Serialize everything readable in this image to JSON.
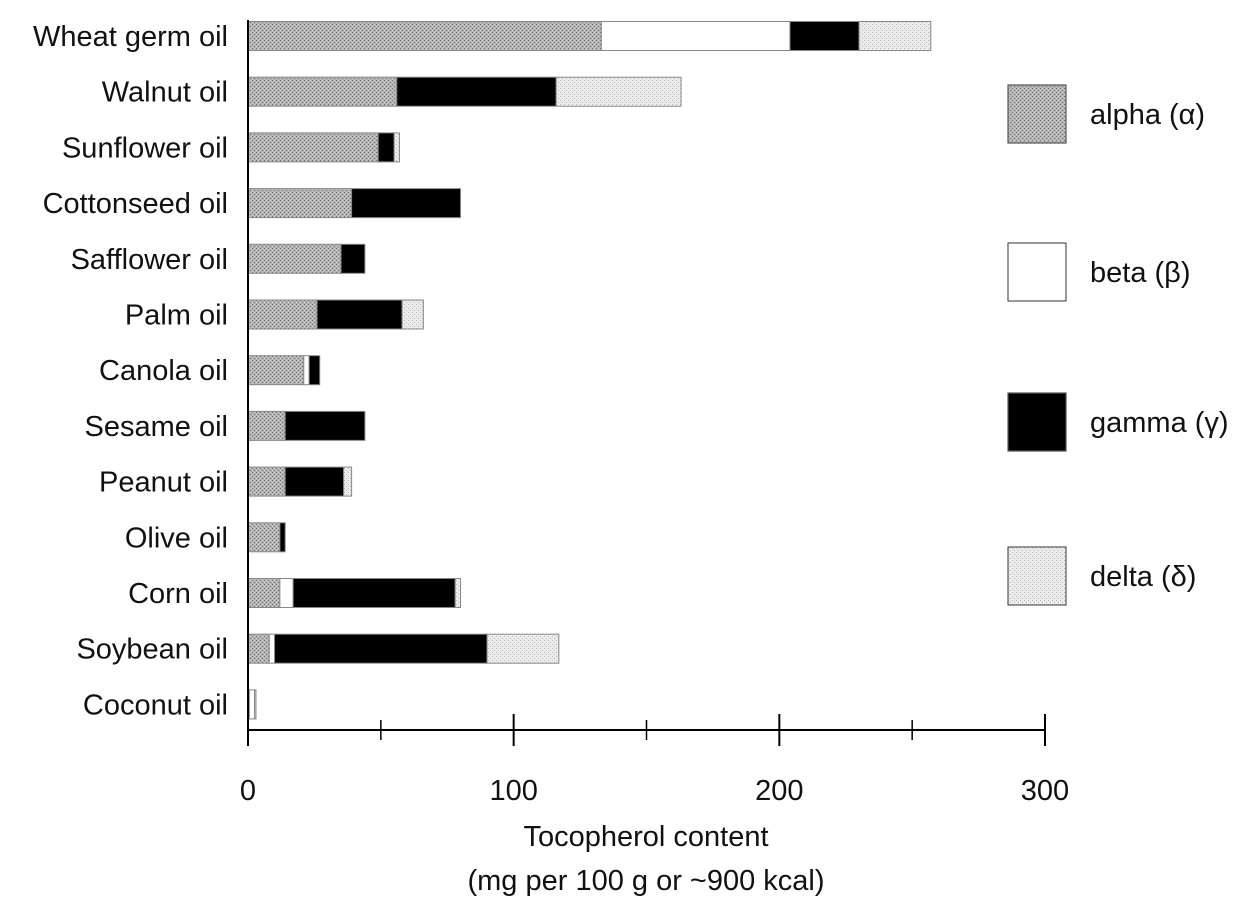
{
  "chart_data": {
    "type": "bar",
    "orientation": "horizontal",
    "stacked": true,
    "categories": [
      "Wheat germ oil",
      "Walnut oil",
      "Sunflower oil",
      "Cottonseed oil",
      "Safflower oil",
      "Palm oil",
      "Canola oil",
      "Sesame oil",
      "Peanut oil",
      "Olive oil",
      "Corn oil",
      "Soybean oil",
      "Coconut oil"
    ],
    "series": [
      {
        "name": "alpha (α)",
        "values": [
          133,
          56,
          49,
          39,
          35,
          26,
          21,
          14,
          14,
          12,
          12,
          8,
          0.5
        ],
        "pattern": "gray-stipple"
      },
      {
        "name": "beta (β)",
        "values": [
          71,
          0,
          0,
          0,
          0,
          0,
          2,
          0,
          0,
          0,
          5,
          2,
          2
        ],
        "pattern": "white"
      },
      {
        "name": "gamma (γ)",
        "values": [
          26,
          60,
          6,
          41,
          9,
          32,
          4,
          30,
          22,
          2,
          61,
          80,
          0
        ],
        "pattern": "black"
      },
      {
        "name": "delta (δ)",
        "values": [
          27,
          47,
          2,
          0,
          0,
          8,
          0,
          0,
          3,
          0,
          2,
          27,
          0.5
        ],
        "pattern": "light-stipple"
      }
    ],
    "xlim": [
      0,
      300
    ],
    "xticks": [
      0,
      100,
      200,
      300
    ],
    "xminor_ticks": [
      50,
      150,
      250
    ],
    "xlabel": "Tocopherol content",
    "xlabel_line2": "(mg per 100 g or ~900 kcal)",
    "ylabel": "",
    "title": "",
    "grid": false,
    "legend_position": "right",
    "colors": {
      "alpha_fill": "#a9a9a9",
      "beta_fill": "#ffffff",
      "gamma_fill": "#000000",
      "delta_fill": "#e6e6e6",
      "outline": "#888888",
      "axis": "#000000"
    }
  }
}
